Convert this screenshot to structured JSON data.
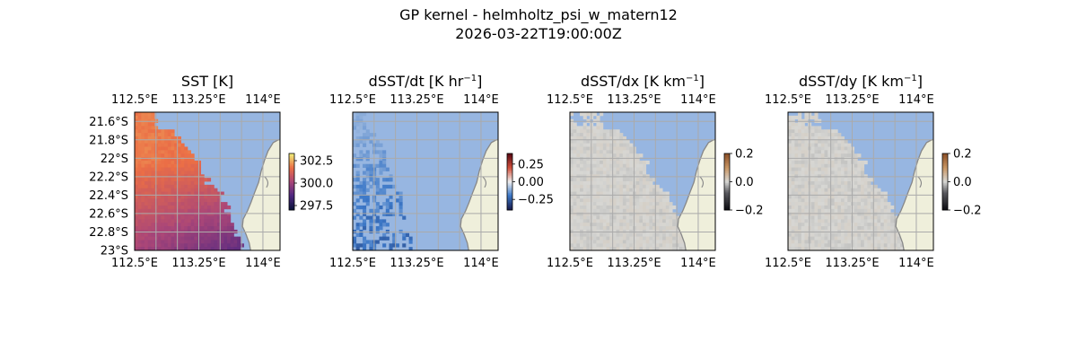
{
  "figure": {
    "title_line1": "GP kernel - helmholtz_psi_w_matern12",
    "title_line2": "2026-03-22T19:00:00Z"
  },
  "colors": {
    "ocean": "#97b6e1",
    "land": "#efefdb",
    "coast": "#888888",
    "grid": "#aaaaaa"
  },
  "chart_data": [
    {
      "type": "heatmap",
      "title": "SST [K]",
      "colormap": "thermal",
      "x_ticks": [
        "112.5°E",
        "113.25°E",
        "114°E"
      ],
      "y_ticks": [
        "21.6°S",
        "21.8°S",
        "22°S",
        "22.2°S",
        "22.4°S",
        "22.6°S",
        "22.8°S",
        "23°S"
      ],
      "lon_range": [
        112.5,
        114.2
      ],
      "lat_range": [
        -23.0,
        -21.5
      ],
      "colorbar": {
        "range": [
          297.0,
          303.3
        ],
        "ticks": [
          "297.5",
          "300.0",
          "302.5"
        ]
      },
      "field_summary": "Warm water (~302 K) offshore to the west and north, cooling to ~298 K toward the south-east coast"
    },
    {
      "type": "heatmap",
      "title": "dSST/dt [K hr⁻¹]",
      "colormap": "balance",
      "x_ticks": [
        "112.5°E",
        "113.25°E",
        "114°E"
      ],
      "y_ticks": [],
      "lon_range": [
        112.5,
        114.2
      ],
      "lat_range": [
        -23.0,
        -21.5
      ],
      "colorbar": {
        "range": [
          -0.4,
          0.4
        ],
        "ticks": [
          "0.25",
          "0.00",
          "−0.25"
        ]
      },
      "field_summary": "Sparse valid pixels in the western strip, mostly slightly negative"
    },
    {
      "type": "heatmap",
      "title": "dSST/dx [K km⁻¹]",
      "colormap": "gray-copper",
      "x_ticks": [
        "112.5°E",
        "113.25°E",
        "114°E"
      ],
      "y_ticks": [],
      "lon_range": [
        112.5,
        114.2
      ],
      "lat_range": [
        -23.0,
        -21.5
      ],
      "colorbar": {
        "range": [
          -0.2,
          0.2
        ],
        "ticks": [
          "0.2",
          "0.0",
          "−0.2"
        ]
      },
      "field_summary": "Near-zero gradients over the valid western region"
    },
    {
      "type": "heatmap",
      "title": "dSST/dy [K km⁻¹]",
      "colormap": "gray-copper",
      "x_ticks": [
        "112.5°E",
        "113.25°E",
        "114°E"
      ],
      "y_ticks": [],
      "lon_range": [
        112.5,
        114.2
      ],
      "lat_range": [
        -23.0,
        -21.5
      ],
      "colorbar": {
        "range": [
          -0.2,
          0.2
        ],
        "ticks": [
          "0.2",
          "0.0",
          "−0.2"
        ]
      },
      "field_summary": "Near-zero gradients over the valid western region"
    }
  ]
}
